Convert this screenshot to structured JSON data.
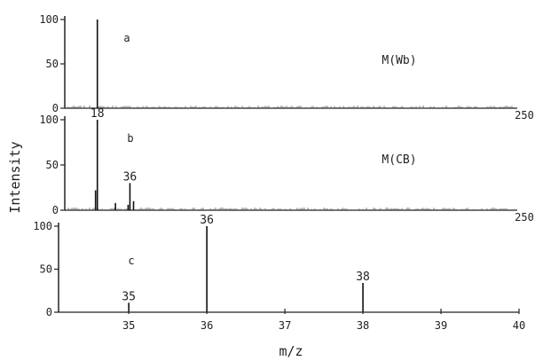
{
  "figure": {
    "ylabel": "Intensity",
    "xlabel": "m/z"
  },
  "chart_data": [
    {
      "type": "bar",
      "panel_label": "a",
      "sample_label": "M(Wb)",
      "xlim": [
        0,
        250
      ],
      "ylim": [
        0,
        100
      ],
      "y_ticks": [
        "0",
        "50",
        "100"
      ],
      "x_end_label": "250",
      "peaks": [
        [
          18,
          100
        ]
      ],
      "noise_level": 3
    },
    {
      "type": "bar",
      "panel_label": "b",
      "sample_label": "M(CB)",
      "xlim": [
        0,
        250
      ],
      "ylim": [
        0,
        100
      ],
      "y_ticks": [
        "0",
        "50",
        "100"
      ],
      "x_end_label": "250",
      "peaks": [
        [
          17,
          22
        ],
        [
          18,
          100
        ],
        [
          28,
          8
        ],
        [
          35,
          6
        ],
        [
          36,
          30
        ],
        [
          38,
          10
        ]
      ],
      "peak_labels": [
        {
          "x": 18,
          "text": "18"
        },
        {
          "x": 36,
          "text": "36"
        }
      ],
      "noise_level": 3
    },
    {
      "type": "bar",
      "panel_label": "c",
      "xlim": [
        34.1,
        40
      ],
      "ylim": [
        0,
        100
      ],
      "y_ticks": [
        "0",
        "50",
        "100"
      ],
      "x_ticks": [
        "35",
        "36",
        "37",
        "38",
        "39",
        "40"
      ],
      "peaks": [
        [
          35,
          11
        ],
        [
          36,
          100
        ],
        [
          38,
          34
        ]
      ],
      "peak_labels": [
        {
          "x": 35,
          "text": "35"
        },
        {
          "x": 36,
          "text": "36"
        },
        {
          "x": 38,
          "text": "38"
        }
      ]
    }
  ]
}
